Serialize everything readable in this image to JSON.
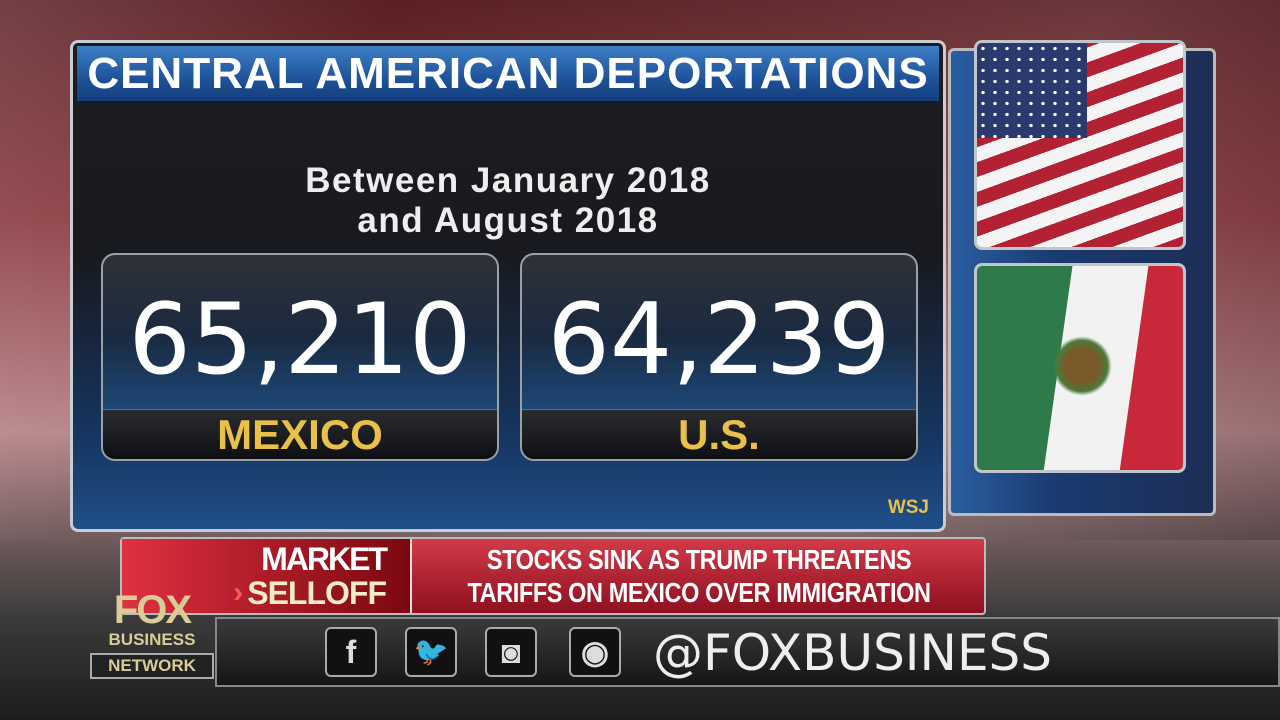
{
  "graphic": {
    "title": "CENTRAL AMERICAN DEPORTATIONS",
    "subtitle_line1": "Between January 2018",
    "subtitle_line2": "and August 2018",
    "stats": [
      {
        "value": "65,210",
        "label": "MEXICO"
      },
      {
        "value": "64,239",
        "label": "U.S."
      }
    ],
    "source": "WSJ",
    "flags": [
      "us-flag",
      "mexico-flag"
    ]
  },
  "ticker": {
    "tag_line1": "MARKET",
    "tag_line2": "SELLOFF",
    "headline_line1": "STOCKS SINK AS TRUMP THREATENS",
    "headline_line2": "TARIFFS ON MEXICO OVER IMMIGRATION"
  },
  "social": {
    "icons": [
      "facebook-icon",
      "twitter-icon",
      "instagram-icon",
      "podcast-icon"
    ],
    "handle": "@FOXBUSINESS"
  },
  "logo": {
    "line1": "FOX",
    "line2": "BUSINESS",
    "line3": "NETWORK"
  },
  "colors": {
    "accent_yellow": "#e8c04a",
    "title_blue": "#1f5299",
    "ticker_red": "#b01c2c"
  }
}
